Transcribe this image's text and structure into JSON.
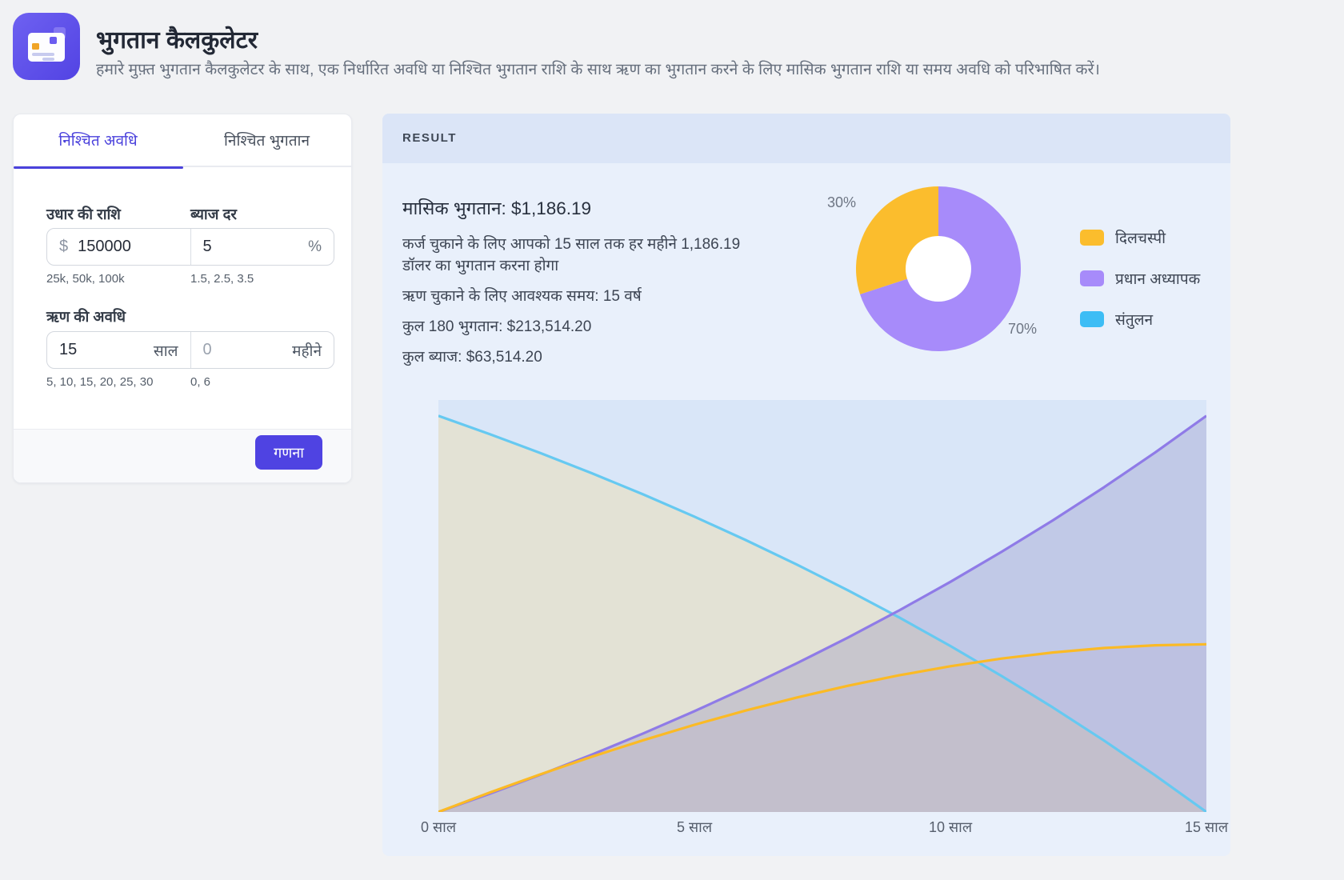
{
  "header": {
    "title": "भुगतान कैलकुलेटर",
    "subtitle": "हमारे मुफ़्त भुगतान कैलकुलेटर के साथ, एक निर्धारित अवधि या निश्चित भुगतान राशि के साथ ऋण का भुगतान करने के लिए मासिक भुगतान राशि या समय अवधि को परिभाषित करें।",
    "icon": "credit-card-icon"
  },
  "calculator": {
    "tabs": [
      {
        "label": "निश्चित अवधि",
        "active": true
      },
      {
        "label": "निश्चित भुगतान",
        "active": false
      }
    ],
    "loan_amount": {
      "label": "उधार की राशि",
      "prefix": "$",
      "value": "150000",
      "hint": "25k, 50k, 100k"
    },
    "interest_rate": {
      "label": "ब्याज दर",
      "value": "5",
      "suffix": "%",
      "hint": "1.5, 2.5, 3.5"
    },
    "loan_period": {
      "label": "ऋण की अवधि",
      "years": {
        "value": "15",
        "suffix": "साल",
        "hint": "5, 10, 15, 20, 25, 30"
      },
      "months": {
        "placeholder": "0",
        "suffix": "महीने",
        "hint": "0, 6"
      }
    },
    "calculate_label": "गणना"
  },
  "result": {
    "header": "RESULT",
    "monthly_payment": "मासिक भुगतान: $1,186.19",
    "description": "कर्ज चुकाने के लिए आपको 15 साल तक हर महीने 1,186.19 डॉलर का भुगतान करना होगा",
    "time_required": "ऋण चुकाने के लिए आवश्यक समय: 15 वर्ष",
    "total_payments": "कुल 180 भुगतान: $213,514.20",
    "total_interest": "कुल ब्याज: $63,514.20"
  },
  "colors": {
    "accent": "#4f43e2",
    "interest": "#fbbd2d",
    "principal": "#a78bfa",
    "balance": "#3dbdf5",
    "result_header_bg": "#dbe5f7",
    "result_body_bg": "#e9f0fb",
    "plot_bg": "#d9e6f8"
  },
  "chart_data": [
    {
      "type": "pie",
      "title": "भुगतान विभाजन (donut)",
      "donut": true,
      "slices": [
        {
          "label": "प्रधान अध्यापक",
          "value": 70,
          "color": "#a78bfa",
          "data_label": "70%"
        },
        {
          "label": "दिलचस्पी",
          "value": 30,
          "color": "#fbbd2d",
          "data_label": "30%"
        }
      ],
      "legend": [
        {
          "label": "दिलचस्पी",
          "color": "#fbbd2d"
        },
        {
          "label": "प्रधान अध्यापक",
          "color": "#a78bfa"
        },
        {
          "label": "संतुलन",
          "color": "#3dbdf5"
        }
      ],
      "legend_position": "right"
    },
    {
      "type": "area",
      "title": "ऋण परिशोधन समय के साथ",
      "x_ticks": [
        "0 साल",
        "5 साल",
        "10 साल",
        "15 साल"
      ],
      "x_years": [
        0,
        1,
        2,
        3,
        4,
        5,
        6,
        7,
        8,
        9,
        10,
        11,
        12,
        13,
        14,
        15
      ],
      "ylim": [
        0,
        156000
      ],
      "grid": false,
      "series": [
        {
          "name": "संतुलन",
          "color": "#66c9f1",
          "fill": "rgba(229,225,205,0.82)",
          "values": [
            150000,
            143108,
            135866,
            128252,
            120248,
            111834,
            102992,
            93697,
            83927,
            73654,
            62857,
            51507,
            39578,
            27040,
            13860,
            0
          ]
        },
        {
          "name": "प्रधान अध्यापक",
          "color": "#8f7be7",
          "fill": "rgba(125,118,180,0.26)",
          "values": [
            0,
            6892,
            14134,
            21748,
            29752,
            38166,
            47008,
            56303,
            66073,
            76346,
            87143,
            98493,
            110422,
            122960,
            136140,
            150000
          ]
        },
        {
          "name": "दिलचस्पी",
          "color": "#fbba25",
          "fill": "rgba(170,160,200,0.18)",
          "values": [
            0,
            7343,
            14335,
            20955,
            27185,
            33005,
            38398,
            43337,
            47801,
            51763,
            55200,
            58084,
            60390,
            62086,
            63140,
            63514
          ]
        }
      ]
    }
  ]
}
